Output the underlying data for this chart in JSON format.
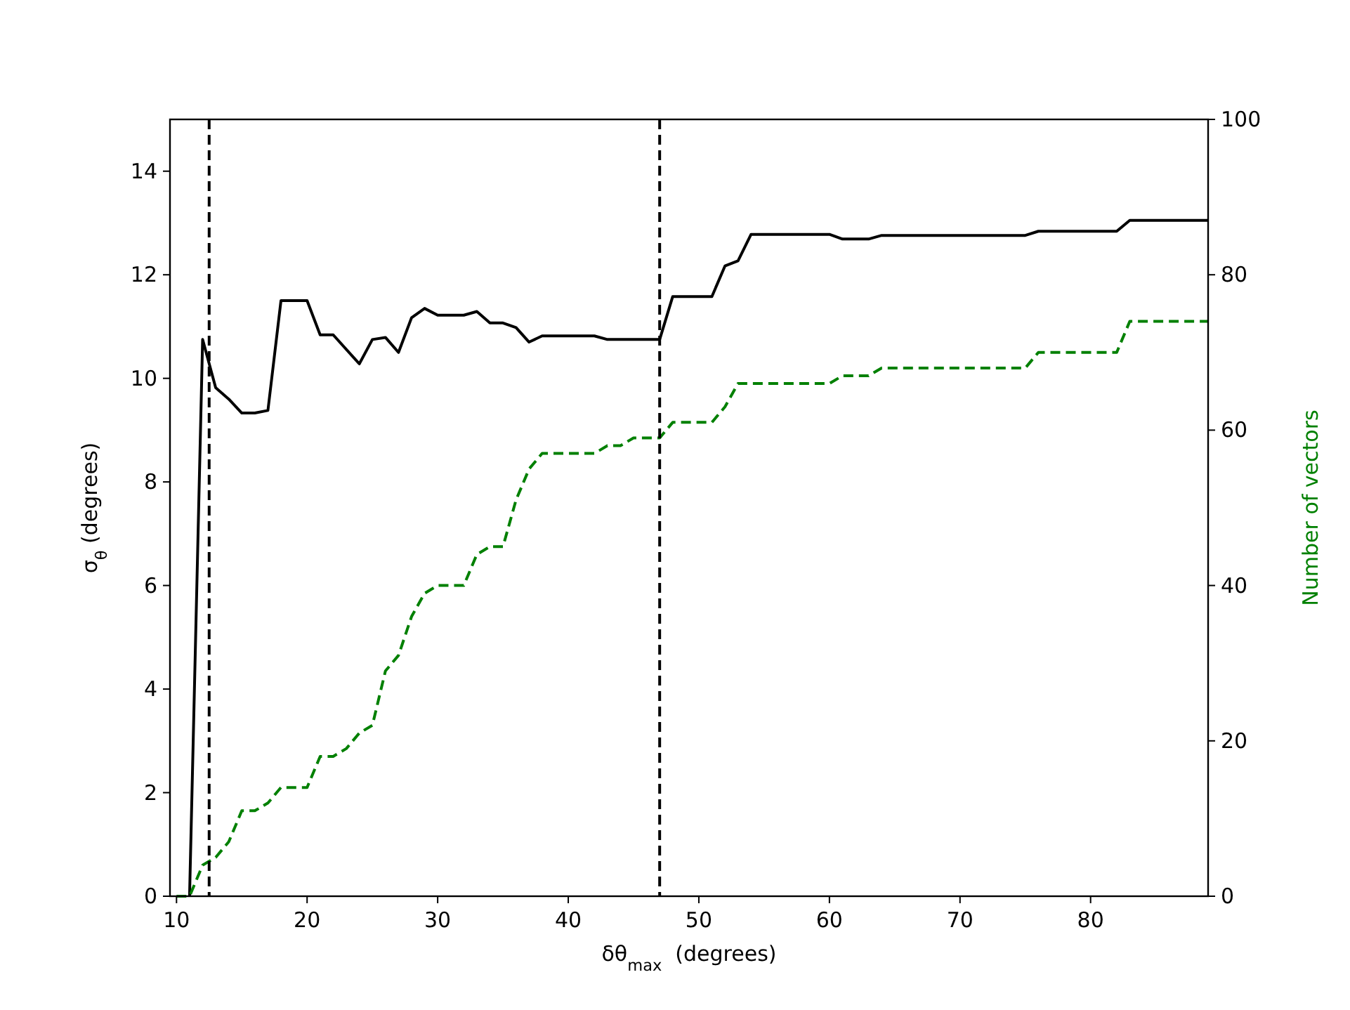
{
  "chart_data": {
    "type": "line",
    "xlabel": "δθ$_{max}$  (degrees)",
    "ylabel": "σ$_{θ}$ (degrees)",
    "y2label": "Number of vectors",
    "xlim": [
      9.5,
      89
    ],
    "xticks": [
      10,
      20,
      30,
      40,
      50,
      60,
      70,
      80
    ],
    "ylim": [
      0,
      15
    ],
    "yticks": [
      0,
      2,
      4,
      6,
      8,
      10,
      12,
      14
    ],
    "y2lim": [
      0,
      100
    ],
    "y2ticks": [
      0,
      20,
      40,
      60,
      80,
      100
    ],
    "grid": false,
    "series": [
      {
        "color": "#000000",
        "line_style": "solid",
        "x": [
          11,
          12,
          13,
          14,
          15,
          16,
          17,
          18,
          20,
          21,
          22,
          24,
          25,
          26,
          27,
          28,
          29,
          30,
          32,
          33,
          34,
          35,
          36,
          37,
          38,
          42,
          43,
          47,
          48,
          51,
          52,
          53,
          54,
          60,
          61,
          63,
          64,
          75,
          76,
          82,
          83,
          89
        ],
        "values": [
          0,
          10.75,
          9.82,
          9.6,
          9.33,
          9.33,
          9.38,
          11.5,
          11.5,
          10.84,
          10.84,
          10.28,
          10.75,
          10.79,
          10.5,
          11.17,
          11.35,
          11.22,
          11.22,
          11.29,
          11.07,
          11.07,
          10.98,
          10.7,
          10.82,
          10.82,
          10.75,
          10.75,
          11.58,
          11.58,
          12.17,
          12.27,
          12.78,
          12.78,
          12.69,
          12.69,
          12.76,
          12.76,
          12.84,
          12.84,
          13.05,
          13.05
        ]
      },
      {
        "color": "#008000",
        "line_style": "dashed",
        "axis": "y2",
        "x": [
          10,
          11,
          12,
          13,
          14,
          15,
          16,
          17,
          18,
          20,
          21,
          22,
          23,
          24,
          25,
          26,
          27,
          28,
          29,
          30,
          32,
          33,
          34,
          35,
          36,
          37,
          38,
          42,
          43,
          44,
          45,
          47,
          48,
          51,
          52,
          53,
          60,
          61,
          63,
          64,
          75,
          76,
          82,
          83,
          89
        ],
        "values": [
          0,
          0,
          4,
          5,
          7,
          11,
          11,
          12,
          14,
          14,
          18,
          18,
          19,
          21,
          22,
          29,
          31,
          36,
          39,
          40,
          40,
          44,
          45,
          45,
          51,
          55,
          57,
          57,
          58,
          58,
          59,
          59,
          61,
          61,
          63,
          66,
          66,
          67,
          67,
          68,
          68,
          70,
          70,
          74,
          74
        ]
      }
    ],
    "ref_lines": [
      {
        "axis": "x",
        "value": 12.5,
        "color": "#000000",
        "line_style": "dashed"
      },
      {
        "axis": "x",
        "value": 47,
        "color": "#000000",
        "line_style": "dashed"
      }
    ]
  }
}
